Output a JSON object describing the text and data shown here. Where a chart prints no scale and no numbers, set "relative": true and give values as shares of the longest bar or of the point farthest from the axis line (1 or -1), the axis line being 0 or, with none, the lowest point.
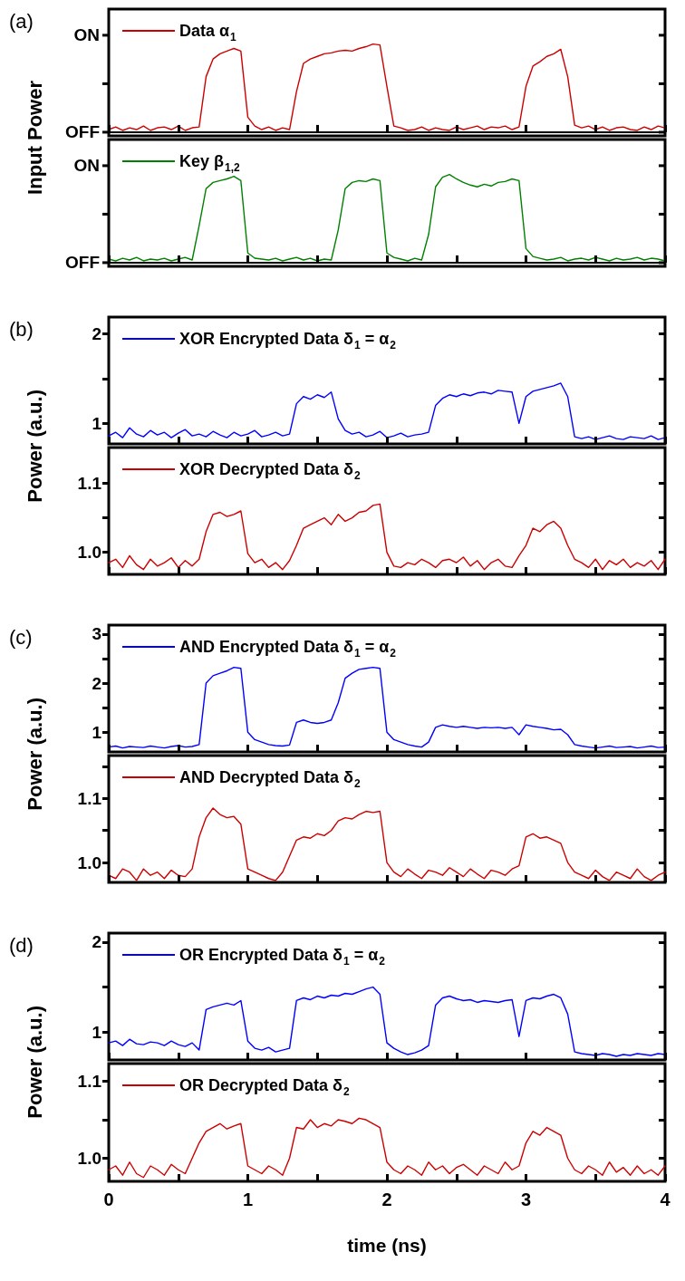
{
  "chart_data": [
    {
      "type": "line",
      "ylabel": "Input Power",
      "title": "(a)",
      "annotations": [
        "OFF",
        "ON"
      ],
      "legend": "top left",
      "tick_labels": "y",
      "relative": true,
      "x": [
        0,
        0.05,
        0.1,
        0.15,
        0.2,
        0.25,
        0.3,
        0.35,
        0.4,
        0.45,
        0.5,
        0.55,
        0.6,
        0.65,
        0.7,
        0.75,
        0.8,
        0.85,
        0.9,
        0.95,
        1,
        1.05,
        1.1,
        1.15,
        1.2,
        1.25,
        1.3,
        1.35,
        1.4,
        1.45,
        1.5,
        1.55,
        1.6,
        1.65,
        1.7,
        1.75,
        1.8,
        1.85,
        1.9,
        1.95,
        2,
        2.05,
        2.1,
        2.15,
        2.2,
        2.25,
        2.3,
        2.35,
        2.4,
        2.45,
        2.5,
        2.55,
        2.6,
        2.65,
        2.7,
        2.75,
        2.8,
        2.85,
        2.9,
        2.95,
        3,
        3.05,
        3.1,
        3.15,
        3.2,
        3.25,
        3.3,
        3.35,
        3.4,
        3.45,
        3.5,
        3.55,
        3.6,
        3.65,
        3.7,
        3.75,
        3.8,
        3.85,
        3.9,
        3.95,
        4
      ],
      "xlim": [
        0,
        4
      ],
      "xticks": [
        0,
        {
          "value": 0.5,
          "label": null
        },
        1,
        {
          "value": 1.5,
          "label": null
        },
        2,
        {
          "value": 2.5,
          "label": null
        },
        3,
        {
          "value": 3.5,
          "label": null
        },
        4
      ],
      "series": [
        {
          "name": "Data α$_{1}$",
          "color": "#cc0000",
          "values": [
            0.03,
            0.06,
            0.02,
            0.05,
            0.03,
            0.07,
            0.02,
            0.05,
            0.06,
            0.03,
            0.07,
            0.02,
            0.05,
            0.06,
            0.63,
            0.83,
            0.89,
            0.92,
            0.95,
            0.92,
            0.17,
            0.07,
            0.03,
            0.06,
            0.02,
            0.05,
            0.03,
            0.46,
            0.78,
            0.83,
            0.86,
            0.89,
            0.9,
            0.92,
            0.93,
            0.92,
            0.95,
            0.97,
            1,
            0.99,
            0.52,
            0.07,
            0.05,
            0.02,
            0.03,
            0.06,
            0.02,
            0.05,
            0.03,
            0.02,
            0.06,
            0.03,
            0.05,
            0.07,
            0.03,
            0.06,
            0.05,
            0.07,
            0.03,
            0.06,
            0.52,
            0.75,
            0.8,
            0.86,
            0.89,
            0.94,
            0.63,
            0.08,
            0.05,
            0.07,
            0.03,
            0.06,
            0.02,
            0.05,
            0.06,
            0.03,
            0.02,
            0.06,
            0.03,
            0.07,
            0.05
          ]
        }
      ]
    },
    {
      "type": "line",
      "annotations": [
        "OFF",
        "ON"
      ],
      "legend": "top left",
      "tick_labels": "y",
      "relative": true,
      "x": [
        0,
        0.05,
        0.1,
        0.15,
        0.2,
        0.25,
        0.3,
        0.35,
        0.4,
        0.45,
        0.5,
        0.55,
        0.6,
        0.65,
        0.7,
        0.75,
        0.8,
        0.85,
        0.9,
        0.95,
        1,
        1.05,
        1.1,
        1.15,
        1.2,
        1.25,
        1.3,
        1.35,
        1.4,
        1.45,
        1.5,
        1.55,
        1.6,
        1.65,
        1.7,
        1.75,
        1.8,
        1.85,
        1.9,
        1.95,
        2,
        2.05,
        2.1,
        2.15,
        2.2,
        2.25,
        2.3,
        2.35,
        2.4,
        2.45,
        2.5,
        2.55,
        2.6,
        2.65,
        2.7,
        2.75,
        2.8,
        2.85,
        2.9,
        2.95,
        3,
        3.05,
        3.1,
        3.15,
        3.2,
        3.25,
        3.3,
        3.35,
        3.4,
        3.45,
        3.5,
        3.55,
        3.6,
        3.65,
        3.7,
        3.75,
        3.8,
        3.85,
        3.9,
        3.95,
        4
      ],
      "xlim": [
        0,
        4
      ],
      "xticks": [
        0,
        {
          "value": 0.5,
          "label": null
        },
        1,
        {
          "value": 1.5,
          "label": null
        },
        2,
        {
          "value": 2.5,
          "label": null
        },
        3,
        {
          "value": 3.5,
          "label": null
        },
        4
      ],
      "series": [
        {
          "name": "Key β$_{1,2}$",
          "color": "#008000",
          "values": [
            0.04,
            0.02,
            0.05,
            0.03,
            0.06,
            0.02,
            0.04,
            0.03,
            0.05,
            0.02,
            0.04,
            0.06,
            0.03,
            0.42,
            0.84,
            0.91,
            0.93,
            0.95,
            0.98,
            0.93,
            0.11,
            0.05,
            0.04,
            0.03,
            0.05,
            0.02,
            0.04,
            0.06,
            0.03,
            0.05,
            0.02,
            0.04,
            0.03,
            0.37,
            0.84,
            0.91,
            0.93,
            0.92,
            0.95,
            0.93,
            0.11,
            0.06,
            0.04,
            0.02,
            0.05,
            0.03,
            0.32,
            0.86,
            0.97,
            1,
            0.95,
            0.91,
            0.88,
            0.86,
            0.89,
            0.87,
            0.91,
            0.92,
            0.95,
            0.93,
            0.16,
            0.07,
            0.05,
            0.03,
            0.04,
            0.06,
            0.02,
            0.04,
            0.05,
            0.03,
            0.06,
            0.04,
            0.02,
            0.05,
            0.03,
            0.04,
            0.06,
            0.03,
            0.05,
            0.04,
            0.02
          ]
        }
      ]
    },
    {
      "type": "line",
      "ylabel": "Power (a.u.)",
      "title": "(b)",
      "legend": "top left",
      "tick_labels": "y",
      "x": [
        0,
        0.05,
        0.1,
        0.15,
        0.2,
        0.25,
        0.3,
        0.35,
        0.4,
        0.45,
        0.5,
        0.55,
        0.6,
        0.65,
        0.7,
        0.75,
        0.8,
        0.85,
        0.9,
        0.95,
        1,
        1.05,
        1.1,
        1.15,
        1.2,
        1.25,
        1.3,
        1.35,
        1.4,
        1.45,
        1.5,
        1.55,
        1.6,
        1.65,
        1.7,
        1.75,
        1.8,
        1.85,
        1.9,
        1.95,
        2,
        2.05,
        2.1,
        2.15,
        2.2,
        2.25,
        2.3,
        2.35,
        2.4,
        2.45,
        2.5,
        2.55,
        2.6,
        2.65,
        2.7,
        2.75,
        2.8,
        2.85,
        2.9,
        2.95,
        3,
        3.05,
        3.1,
        3.15,
        3.2,
        3.25,
        3.3,
        3.35,
        3.4,
        3.45,
        3.5,
        3.55,
        3.6,
        3.65,
        3.7,
        3.75,
        3.8,
        3.85,
        3.9,
        3.95,
        4
      ],
      "xlim": [
        0,
        4
      ],
      "xticks": [
        0,
        {
          "value": 0.5,
          "label": null
        },
        1,
        {
          "value": 1.5,
          "label": null
        },
        2,
        {
          "value": 2.5,
          "label": null
        },
        3,
        {
          "value": 3.5,
          "label": null
        },
        4
      ],
      "ylim": [
        0.77,
        2.19
      ],
      "yticks": [
        1,
        {
          "value": 1.5,
          "label": null
        },
        2
      ],
      "series": [
        {
          "name": "XOR Encrypted Data δ$_{1}$ = α$_{2}$",
          "color": "#0000ff",
          "values": [
            0.86,
            0.9,
            0.84,
            0.95,
            0.88,
            0.85,
            0.92,
            0.87,
            0.9,
            0.84,
            0.89,
            0.93,
            0.86,
            0.88,
            0.85,
            0.91,
            0.87,
            0.84,
            0.9,
            0.86,
            0.88,
            0.92,
            0.85,
            0.87,
            0.9,
            0.86,
            0.88,
            1.22,
            1.3,
            1.27,
            1.32,
            1.29,
            1.35,
            1.05,
            0.92,
            0.88,
            0.9,
            0.85,
            0.87,
            0.91,
            0.84,
            0.86,
            0.89,
            0.85,
            0.87,
            0.88,
            0.9,
            1.2,
            1.28,
            1.32,
            1.3,
            1.33,
            1.31,
            1.34,
            1.35,
            1.33,
            1.37,
            1.36,
            1.35,
            1.0,
            1.3,
            1.36,
            1.38,
            1.4,
            1.42,
            1.45,
            1.3,
            0.85,
            0.83,
            0.85,
            0.82,
            0.84,
            0.86,
            0.83,
            0.82,
            0.85,
            0.84,
            0.83,
            0.86,
            0.82,
            0.84
          ]
        }
      ]
    },
    {
      "type": "line",
      "legend": "top left",
      "tick_labels": "y",
      "x": [
        0,
        0.05,
        0.1,
        0.15,
        0.2,
        0.25,
        0.3,
        0.35,
        0.4,
        0.45,
        0.5,
        0.55,
        0.6,
        0.65,
        0.7,
        0.75,
        0.8,
        0.85,
        0.9,
        0.95,
        1,
        1.05,
        1.1,
        1.15,
        1.2,
        1.25,
        1.3,
        1.35,
        1.4,
        1.45,
        1.5,
        1.55,
        1.6,
        1.65,
        1.7,
        1.75,
        1.8,
        1.85,
        1.9,
        1.95,
        2,
        2.05,
        2.1,
        2.15,
        2.2,
        2.25,
        2.3,
        2.35,
        2.4,
        2.45,
        2.5,
        2.55,
        2.6,
        2.65,
        2.7,
        2.75,
        2.8,
        2.85,
        2.9,
        2.95,
        3,
        3.05,
        3.1,
        3.15,
        3.2,
        3.25,
        3.3,
        3.35,
        3.4,
        3.45,
        3.5,
        3.55,
        3.6,
        3.65,
        3.7,
        3.75,
        3.8,
        3.85,
        3.9,
        3.95,
        4
      ],
      "xlim": [
        0,
        4
      ],
      "xticks": [
        0,
        {
          "value": 0.5,
          "label": null
        },
        1,
        {
          "value": 1.5,
          "label": null
        },
        2,
        {
          "value": 2.5,
          "label": null
        },
        3,
        {
          "value": 3.5,
          "label": null
        },
        4
      ],
      "ylim": [
        0.968,
        1.152
      ],
      "yticks": [
        {
          "value": 1.0,
          "label": "1.0"
        },
        {
          "value": 1.05,
          "label": null
        },
        1.1
      ],
      "series": [
        {
          "name": "XOR Decrypted Data δ$_{2}$",
          "color": "#cc0000",
          "values": [
            0.985,
            0.99,
            0.978,
            0.995,
            0.982,
            0.975,
            0.99,
            0.98,
            0.985,
            0.992,
            0.978,
            0.988,
            0.98,
            0.99,
            1.03,
            1.055,
            1.058,
            1.052,
            1.055,
            1.06,
            0.998,
            0.985,
            0.99,
            0.978,
            0.985,
            0.975,
            0.988,
            1.01,
            1.035,
            1.04,
            1.045,
            1.05,
            1.04,
            1.055,
            1.045,
            1.05,
            1.058,
            1.06,
            1.068,
            1.07,
            1.0,
            0.98,
            0.978,
            0.985,
            0.982,
            0.99,
            0.985,
            0.978,
            0.988,
            0.99,
            0.985,
            0.993,
            0.98,
            0.988,
            0.975,
            0.985,
            0.99,
            0.98,
            0.978,
            0.995,
            1.01,
            1.035,
            1.03,
            1.04,
            1.045,
            1.035,
            1.01,
            0.99,
            0.985,
            0.978,
            0.99,
            0.975,
            0.988,
            0.982,
            0.99,
            0.978,
            0.985,
            0.98,
            0.988,
            0.975,
            0.99
          ]
        }
      ]
    },
    {
      "type": "line",
      "ylabel": "Power (a.u.)",
      "title": "(c)",
      "legend": "top left",
      "tick_labels": "y",
      "x": [
        0,
        0.05,
        0.1,
        0.15,
        0.2,
        0.25,
        0.3,
        0.35,
        0.4,
        0.45,
        0.5,
        0.55,
        0.6,
        0.65,
        0.7,
        0.75,
        0.8,
        0.85,
        0.9,
        0.95,
        1,
        1.05,
        1.1,
        1.15,
        1.2,
        1.25,
        1.3,
        1.35,
        1.4,
        1.45,
        1.5,
        1.55,
        1.6,
        1.65,
        1.7,
        1.75,
        1.8,
        1.85,
        1.9,
        1.95,
        2,
        2.05,
        2.1,
        2.15,
        2.2,
        2.25,
        2.3,
        2.35,
        2.4,
        2.45,
        2.5,
        2.55,
        2.6,
        2.65,
        2.7,
        2.75,
        2.8,
        2.85,
        2.9,
        2.95,
        3,
        3.05,
        3.1,
        3.15,
        3.2,
        3.25,
        3.3,
        3.35,
        3.4,
        3.45,
        3.5,
        3.55,
        3.6,
        3.65,
        3.7,
        3.75,
        3.8,
        3.85,
        3.9,
        3.95,
        4
      ],
      "xlim": [
        0,
        4
      ],
      "xticks": [
        0,
        {
          "value": 0.5,
          "label": null
        },
        1,
        {
          "value": 1.5,
          "label": null
        },
        2,
        {
          "value": 2.5,
          "label": null
        },
        3,
        {
          "value": 3.5,
          "label": null
        },
        4
      ],
      "ylim": [
        0.6,
        3.18
      ],
      "yticks": [
        1,
        {
          "value": 1.5,
          "label": null
        },
        2,
        {
          "value": 2.5,
          "label": null
        },
        3
      ],
      "series": [
        {
          "name": "AND Encrypted Data δ$_{1}$ = α$_{2}$",
          "color": "#0000ff",
          "values": [
            0.7,
            0.72,
            0.68,
            0.71,
            0.7,
            0.69,
            0.72,
            0.7,
            0.68,
            0.71,
            0.73,
            0.7,
            0.71,
            0.75,
            2.0,
            2.15,
            2.2,
            2.25,
            2.32,
            2.3,
            1.0,
            0.85,
            0.8,
            0.75,
            0.73,
            0.72,
            0.74,
            1.2,
            1.25,
            1.2,
            1.18,
            1.2,
            1.25,
            1.6,
            2.1,
            2.2,
            2.28,
            2.3,
            2.32,
            2.3,
            1.0,
            0.85,
            0.8,
            0.75,
            0.72,
            0.7,
            0.8,
            1.1,
            1.15,
            1.12,
            1.1,
            1.12,
            1.1,
            1.08,
            1.1,
            1.09,
            1.1,
            1.08,
            1.1,
            0.95,
            1.15,
            1.12,
            1.1,
            1.08,
            1.05,
            1.06,
            0.95,
            0.75,
            0.72,
            0.7,
            0.68,
            0.7,
            0.72,
            0.69,
            0.7,
            0.71,
            0.68,
            0.7,
            0.72,
            0.69,
            0.7
          ]
        }
      ]
    },
    {
      "type": "line",
      "legend": "top left",
      "tick_labels": "y",
      "x": [
        0,
        0.05,
        0.1,
        0.15,
        0.2,
        0.25,
        0.3,
        0.35,
        0.4,
        0.45,
        0.5,
        0.55,
        0.6,
        0.65,
        0.7,
        0.75,
        0.8,
        0.85,
        0.9,
        0.95,
        1,
        1.05,
        1.1,
        1.15,
        1.2,
        1.25,
        1.3,
        1.35,
        1.4,
        1.45,
        1.5,
        1.55,
        1.6,
        1.65,
        1.7,
        1.75,
        1.8,
        1.85,
        1.9,
        1.95,
        2,
        2.05,
        2.1,
        2.15,
        2.2,
        2.25,
        2.3,
        2.35,
        2.4,
        2.45,
        2.5,
        2.55,
        2.6,
        2.65,
        2.7,
        2.75,
        2.8,
        2.85,
        2.9,
        2.95,
        3,
        3.05,
        3.1,
        3.15,
        3.2,
        3.25,
        3.3,
        3.35,
        3.4,
        3.45,
        3.5,
        3.55,
        3.6,
        3.65,
        3.7,
        3.75,
        3.8,
        3.85,
        3.9,
        3.95,
        4
      ],
      "xlim": [
        0,
        4
      ],
      "xticks": [
        0,
        {
          "value": 0.5,
          "label": null
        },
        1,
        {
          "value": 1.5,
          "label": null
        },
        2,
        {
          "value": 2.5,
          "label": null
        },
        3,
        {
          "value": 3.5,
          "label": null
        },
        4
      ],
      "ylim": [
        0.969,
        1.167
      ],
      "yticks": [
        {
          "value": 1.0,
          "label": "1.0"
        },
        {
          "value": 1.05,
          "label": null
        },
        1.1,
        {
          "value": 1.15,
          "label": null
        }
      ],
      "series": [
        {
          "name": "AND Decrypted Data δ$_{2}$",
          "color": "#cc0000",
          "values": [
            0.98,
            0.975,
            0.99,
            0.985,
            0.972,
            0.99,
            0.98,
            0.985,
            0.975,
            0.988,
            0.98,
            0.978,
            0.99,
            1.04,
            1.07,
            1.085,
            1.075,
            1.07,
            1.072,
            1.06,
            0.99,
            0.985,
            0.98,
            0.975,
            0.972,
            0.985,
            1.01,
            1.035,
            1.04,
            1.038,
            1.045,
            1.042,
            1.05,
            1.065,
            1.07,
            1.068,
            1.075,
            1.08,
            1.078,
            1.08,
            1.0,
            0.985,
            0.978,
            0.99,
            0.982,
            0.975,
            0.988,
            0.985,
            0.98,
            0.992,
            0.985,
            0.978,
            0.99,
            0.982,
            0.975,
            0.988,
            0.985,
            0.98,
            0.99,
            0.995,
            1.04,
            1.045,
            1.038,
            1.04,
            1.035,
            1.03,
            1.0,
            0.985,
            0.98,
            0.975,
            0.988,
            0.978,
            0.972,
            0.985,
            0.98,
            0.975,
            0.99,
            0.978,
            0.972,
            0.98,
            0.985
          ]
        }
      ]
    },
    {
      "type": "line",
      "ylabel": "Power (a.u.)",
      "title": "(d)",
      "legend": "top left",
      "tick_labels": "y",
      "x": [
        0,
        0.05,
        0.1,
        0.15,
        0.2,
        0.25,
        0.3,
        0.35,
        0.4,
        0.45,
        0.5,
        0.55,
        0.6,
        0.65,
        0.7,
        0.75,
        0.8,
        0.85,
        0.9,
        0.95,
        1,
        1.05,
        1.1,
        1.15,
        1.2,
        1.25,
        1.3,
        1.35,
        1.4,
        1.45,
        1.5,
        1.55,
        1.6,
        1.65,
        1.7,
        1.75,
        1.8,
        1.85,
        1.9,
        1.95,
        2,
        2.05,
        2.1,
        2.15,
        2.2,
        2.25,
        2.3,
        2.35,
        2.4,
        2.45,
        2.5,
        2.55,
        2.6,
        2.65,
        2.7,
        2.75,
        2.8,
        2.85,
        2.9,
        2.95,
        3,
        3.05,
        3.1,
        3.15,
        3.2,
        3.25,
        3.3,
        3.35,
        3.4,
        3.45,
        3.5,
        3.55,
        3.6,
        3.65,
        3.7,
        3.75,
        3.8,
        3.85,
        3.9,
        3.95,
        4
      ],
      "xlim": [
        0,
        4
      ],
      "xticks": [
        0,
        {
          "value": 0.5,
          "label": null
        },
        1,
        {
          "value": 1.5,
          "label": null
        },
        2,
        {
          "value": 2.5,
          "label": null
        },
        3,
        {
          "value": 3.5,
          "label": null
        },
        4
      ],
      "ylim": [
        0.69,
        2.1
      ],
      "yticks": [
        1,
        {
          "value": 1.5,
          "label": null
        },
        2
      ],
      "series": [
        {
          "name": "OR Encrypted Data δ$_{1}$ = α$_{2}$",
          "color": "#0000ff",
          "values": [
            0.88,
            0.9,
            0.85,
            0.92,
            0.87,
            0.86,
            0.89,
            0.88,
            0.85,
            0.9,
            0.86,
            0.84,
            0.88,
            0.8,
            1.25,
            1.28,
            1.3,
            1.32,
            1.3,
            1.35,
            0.9,
            0.82,
            0.8,
            0.83,
            0.78,
            0.8,
            0.82,
            1.35,
            1.38,
            1.36,
            1.4,
            1.38,
            1.41,
            1.4,
            1.43,
            1.42,
            1.45,
            1.48,
            1.5,
            1.42,
            0.88,
            0.82,
            0.78,
            0.75,
            0.77,
            0.8,
            0.85,
            1.3,
            1.38,
            1.4,
            1.37,
            1.35,
            1.36,
            1.33,
            1.35,
            1.34,
            1.33,
            1.35,
            1.36,
            0.95,
            1.35,
            1.38,
            1.37,
            1.4,
            1.42,
            1.38,
            1.2,
            0.78,
            0.76,
            0.75,
            0.74,
            0.76,
            0.75,
            0.73,
            0.75,
            0.74,
            0.76,
            0.75,
            0.74,
            0.76,
            0.75
          ]
        }
      ]
    },
    {
      "type": "line",
      "legend": "top left",
      "xlabel": "time (ns)",
      "x": [
        0,
        0.05,
        0.1,
        0.15,
        0.2,
        0.25,
        0.3,
        0.35,
        0.4,
        0.45,
        0.5,
        0.55,
        0.6,
        0.65,
        0.7,
        0.75,
        0.8,
        0.85,
        0.9,
        0.95,
        1,
        1.05,
        1.1,
        1.15,
        1.2,
        1.25,
        1.3,
        1.35,
        1.4,
        1.45,
        1.5,
        1.55,
        1.6,
        1.65,
        1.7,
        1.75,
        1.8,
        1.85,
        1.9,
        1.95,
        2,
        2.05,
        2.1,
        2.15,
        2.2,
        2.25,
        2.3,
        2.35,
        2.4,
        2.45,
        2.5,
        2.55,
        2.6,
        2.65,
        2.7,
        2.75,
        2.8,
        2.85,
        2.9,
        2.95,
        3,
        3.05,
        3.1,
        3.15,
        3.2,
        3.25,
        3.3,
        3.35,
        3.4,
        3.45,
        3.5,
        3.55,
        3.6,
        3.65,
        3.7,
        3.75,
        3.8,
        3.85,
        3.9,
        3.95,
        4
      ],
      "xlim": [
        0,
        4
      ],
      "xticks": [
        0,
        {
          "value": 0.5,
          "label": null
        },
        1,
        {
          "value": 1.5,
          "label": null
        },
        2,
        {
          "value": 2.5,
          "label": null
        },
        3,
        {
          "value": 3.5,
          "label": null
        },
        4
      ],
      "ylim": [
        0.97,
        1.123
      ],
      "yticks": [
        {
          "value": 1.0,
          "label": "1.0"
        },
        {
          "value": 1.05,
          "label": null
        },
        1.1
      ],
      "series": [
        {
          "name": "OR Decrypted Data δ$_{2}$",
          "color": "#cc0000",
          "values": [
            0.985,
            0.99,
            0.978,
            0.995,
            0.98,
            0.975,
            0.99,
            0.985,
            0.978,
            0.992,
            0.985,
            0.98,
            1.0,
            1.02,
            1.035,
            1.04,
            1.045,
            1.038,
            1.042,
            1.045,
            0.99,
            0.985,
            0.98,
            0.99,
            0.985,
            0.978,
            1.0,
            1.04,
            1.038,
            1.05,
            1.04,
            1.045,
            1.042,
            1.05,
            1.048,
            1.045,
            1.052,
            1.05,
            1.045,
            1.04,
            0.995,
            0.985,
            0.98,
            0.99,
            0.985,
            0.978,
            0.995,
            0.985,
            0.99,
            0.98,
            0.988,
            0.992,
            0.985,
            0.978,
            0.99,
            0.985,
            0.98,
            0.995,
            0.985,
            0.99,
            1.02,
            1.035,
            1.03,
            1.04,
            1.035,
            1.03,
            1.0,
            0.985,
            0.98,
            0.99,
            0.985,
            0.978,
            0.995,
            0.982,
            0.988,
            0.978,
            0.99,
            0.98,
            0.985,
            0.978,
            0.99
          ]
        }
      ]
    }
  ]
}
